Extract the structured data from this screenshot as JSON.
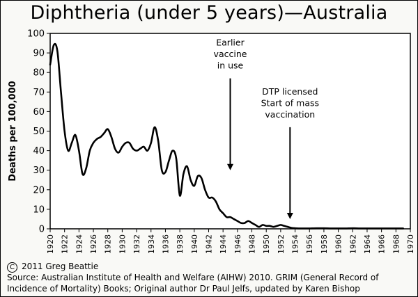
{
  "title": "Diphtheria (under 5 years)—Australia",
  "copyright": "2011 Greg Beattie",
  "source_line1": "Source: Australian Institute of Health and Welfare (AIHW) 2010. GRIM (General Record of",
  "source_line2": "Incidence of Mortality) Books; Original author Dr Paul Jelfs, updated by Karen Bishop",
  "chart_data": {
    "type": "line",
    "title": "Diphtheria (under 5 years)—Australia",
    "xlabel": "",
    "ylabel": "Deaths per 100,000",
    "xlim": [
      1920,
      1970
    ],
    "ylim": [
      0,
      100
    ],
    "xticks": [
      "1920",
      "1922",
      "1924",
      "1926",
      "1928",
      "1930",
      "1932",
      "1934",
      "1936",
      "1938",
      "1940",
      "1942",
      "1944",
      "1946",
      "1948",
      "1950",
      "1952",
      "1954",
      "1956",
      "1958",
      "1960",
      "1962",
      "1964",
      "1966",
      "1968",
      "1970"
    ],
    "yticks": [
      "0",
      "10",
      "20",
      "30",
      "40",
      "50",
      "60",
      "70",
      "80",
      "90",
      "100"
    ],
    "grid": false,
    "series": [
      {
        "x": [
          1920,
          1920.5,
          1921,
          1921.5,
          1922,
          1922.5,
          1923,
          1923.5,
          1924,
          1924.5,
          1925,
          1925.5,
          1926,
          1926.5,
          1927,
          1927.5,
          1928,
          1928.5,
          1929,
          1929.5,
          1930,
          1930.5,
          1931,
          1931.5,
          1932,
          1932.5,
          1933,
          1933.5,
          1934,
          1934.5,
          1935,
          1935.5,
          1936,
          1936.5,
          1937,
          1937.5,
          1938,
          1938.5,
          1939,
          1939.5,
          1940,
          1940.5,
          1941,
          1941.5,
          1942,
          1942.5,
          1943,
          1943.5,
          1944,
          1944.5,
          1945,
          1945.5,
          1946,
          1946.5,
          1947,
          1947.5,
          1948,
          1948.5,
          1949,
          1949.5,
          1950,
          1950.5,
          1951,
          1951.5,
          1952,
          1952.5,
          1953,
          1953.5,
          1954,
          1954.5,
          1955,
          1955.5,
          1956,
          1957,
          1958,
          1959,
          1960,
          1961,
          1962,
          1963,
          1964,
          1965,
          1966,
          1967,
          1968,
          1969
        ],
        "y": [
          84,
          94,
          91,
          70,
          50,
          40,
          44,
          48,
          40,
          28,
          31,
          40,
          44,
          46,
          47,
          49,
          51,
          47,
          41,
          39,
          42,
          44,
          44,
          41,
          40,
          41,
          42,
          40,
          44,
          52,
          45,
          30,
          29,
          35,
          40,
          36,
          17,
          28,
          32,
          25,
          22,
          27,
          26,
          20,
          16,
          16,
          14,
          10,
          8,
          6,
          6,
          5,
          4,
          3,
          3,
          4,
          3,
          2,
          1,
          2,
          1.5,
          1.5,
          1,
          1.5,
          2,
          1.5,
          1,
          0.5,
          0.3,
          0.2,
          0.2,
          0.2,
          0.2,
          0.3,
          0.3,
          0.2,
          0.2,
          0.2,
          0.3,
          0.2,
          0.2,
          0.2,
          0.2,
          0.2,
          0.2,
          0.2
        ]
      }
    ],
    "annotations": [
      {
        "lines": [
          "Earlier",
          "vaccine",
          "in use"
        ],
        "arrow_year": 1945,
        "arrow_from_y": 77,
        "arrow_to_y": 30
      },
      {
        "lines": [
          "DTP licensed",
          "Start of mass",
          "vaccination"
        ],
        "arrow_year": 1953.3,
        "arrow_from_y": 52,
        "arrow_to_y": 5
      }
    ]
  }
}
